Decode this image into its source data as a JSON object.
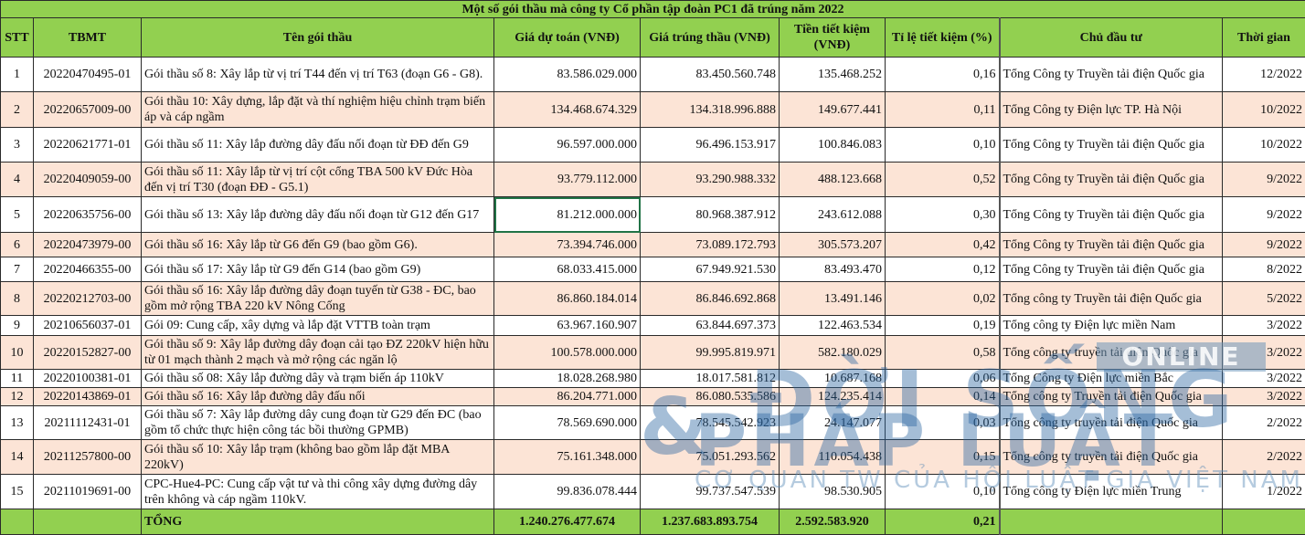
{
  "title": "Một số gói thầu mà công ty Cổ phần tập đoàn PC1 đã trúng năm 2022",
  "headers": {
    "stt": "STT",
    "tbmt": "TBMT",
    "ten_goi_thau": "Tên gói thầu",
    "gia_du_toan": "Giá dự toán (VNĐ)",
    "gia_trung_thau": "Giá trúng thầu (VNĐ)",
    "tien_tiet_kiem": "Tiền tiết kiệm (VNĐ)",
    "ti_le_tiet_kiem": "Tỉ lệ tiết kiệm (%)",
    "chu_dau_tu": "Chủ đầu tư",
    "thoi_gian": "Thời gian"
  },
  "rows": [
    {
      "stt": "1",
      "tbmt": "20220470495-01",
      "ten": "Gói thầu số 8: Xây lắp từ vị trí T44 đến vị trí T63 (đoạn G6 - G8).",
      "gia_du_toan": "83.586.029.000",
      "gia_trung_thau": "83.450.560.748",
      "tien_tiet_kiem": "135.468.252",
      "ti_le": "0,16",
      "chu_dau_tu": "Tổng Công ty Truyền tải điện Quốc gia",
      "thoi_gian": "12/2022"
    },
    {
      "stt": "2",
      "tbmt": "20220657009-00",
      "ten": "Gói thầu 10: Xây dựng, lắp đặt và thí nghiệm hiệu chỉnh trạm biến áp và cáp ngầm",
      "gia_du_toan": "134.468.674.329",
      "gia_trung_thau": "134.318.996.888",
      "tien_tiet_kiem": "149.677.441",
      "ti_le": "0,11",
      "chu_dau_tu": "Tổng Công ty Điện lực TP. Hà Nội",
      "thoi_gian": "10/2022"
    },
    {
      "stt": "3",
      "tbmt": "20220621771-01",
      "ten": "Gói thầu số 11: Xây lắp đường dây đấu nối đoạn từ ĐĐ đến G9",
      "gia_du_toan": "96.597.000.000",
      "gia_trung_thau": "96.496.153.917",
      "tien_tiet_kiem": "100.846.083",
      "ti_le": "0,10",
      "chu_dau_tu": "Tổng Công ty Truyền tải điện Quốc gia",
      "thoi_gian": "10/2022"
    },
    {
      "stt": "4",
      "tbmt": "20220409059-00",
      "ten": "Gói thầu số 11: Xây lắp từ vị trí cột cổng TBA 500 kV Đức Hòa đến vị trí T30 (đoạn ĐĐ - G5.1)",
      "gia_du_toan": "93.779.112.000",
      "gia_trung_thau": "93.290.988.332",
      "tien_tiet_kiem": "488.123.668",
      "ti_le": "0,52",
      "chu_dau_tu": "Tổng Công ty Truyền tải điện Quốc gia",
      "thoi_gian": "9/2022"
    },
    {
      "stt": "5",
      "tbmt": "20220635756-00",
      "ten": "Gói thầu số 13: Xây lắp đường dây đấu nối đoạn từ G12 đến G17",
      "gia_du_toan": "81.212.000.000",
      "gia_trung_thau": "80.968.387.912",
      "tien_tiet_kiem": "243.612.088",
      "ti_le": "0,30",
      "chu_dau_tu": "Tổng Công ty Truyền tải điện Quốc gia",
      "thoi_gian": "9/2022"
    },
    {
      "stt": "6",
      "tbmt": "20220473979-00",
      "ten": "Gói thầu số 16: Xây lắp từ G6 đến G9 (bao gồm G6).",
      "gia_du_toan": "73.394.746.000",
      "gia_trung_thau": "73.089.172.793",
      "tien_tiet_kiem": "305.573.207",
      "ti_le": "0,42",
      "chu_dau_tu": "Tổng Công ty Truyền tải điện Quốc gia",
      "thoi_gian": "9/2022"
    },
    {
      "stt": "7",
      "tbmt": "20220466355-00",
      "ten": "Gói thầu số 17: Xây lắp từ G9 đến G14 (bao gồm G9)",
      "gia_du_toan": "68.033.415.000",
      "gia_trung_thau": "67.949.921.530",
      "tien_tiet_kiem": "83.493.470",
      "ti_le": "0,12",
      "chu_dau_tu": "Tổng Công ty Truyền tải điện Quốc gia",
      "thoi_gian": "8/2022"
    },
    {
      "stt": "8",
      "tbmt": "20220212703-00",
      "ten": "Gói thầu số 16: Xây lắp đường dây đoạn tuyến từ G38 - ĐC, bao gồm mở rộng TBA 220 kV Nông Cống",
      "gia_du_toan": "86.860.184.014",
      "gia_trung_thau": "86.846.692.868",
      "tien_tiet_kiem": "13.491.146",
      "ti_le": "0,02",
      "chu_dau_tu": "Tổng công ty Truyền tải điện Quốc gia",
      "thoi_gian": "5/2022"
    },
    {
      "stt": "9",
      "tbmt": "20210656037-01",
      "ten": "Gói 09: Cung cấp, xây dựng và lắp đặt VTTB toàn trạm",
      "gia_du_toan": "63.967.160.907",
      "gia_trung_thau": "63.844.697.373",
      "tien_tiet_kiem": "122.463.534",
      "ti_le": "0,19",
      "chu_dau_tu": "Tổng công ty Điện lực miền Nam",
      "thoi_gian": "3/2022"
    },
    {
      "stt": "10",
      "tbmt": "20220152827-00",
      "ten": "Gói thầu số 9: Xây lắp đường dây đoạn cải tạo ĐZ 220kV hiện hữu từ 01 mạch thành 2 mạch và mở rộng các ngăn lộ",
      "gia_du_toan": "100.578.000.000",
      "gia_trung_thau": "99.995.819.971",
      "tien_tiet_kiem": "582.180.029",
      "ti_le": "0,58",
      "chu_dau_tu": "Tổng công ty truyền tải điện Quốc gia",
      "thoi_gian": "3/2022"
    },
    {
      "stt": "11",
      "tbmt": "20220100381-01",
      "ten": "Gói thầu số 08: Xây lắp đường dây và trạm biến áp 110kV",
      "gia_du_toan": "18.028.268.980",
      "gia_trung_thau": "18.017.581.812",
      "tien_tiet_kiem": "10.687.168",
      "ti_le": "0,06",
      "chu_dau_tu": "Tổng Công ty Điện lực miền Bắc",
      "thoi_gian": "3/2022"
    },
    {
      "stt": "12",
      "tbmt": "20220143869-01",
      "ten": "Gói thầu số 16: Xây lắp đường dây đấu nối",
      "gia_du_toan": "86.204.771.000",
      "gia_trung_thau": "86.080.535.586",
      "tien_tiet_kiem": "124.235.414",
      "ti_le": "0,14",
      "chu_dau_tu": "Tổng công ty Truyền tải điện Quốc gia",
      "thoi_gian": "3/2022"
    },
    {
      "stt": "13",
      "tbmt": "20211112431-01",
      "ten": "Gói thầu số 7: Xây lắp đường dây cung đoạn từ G29 đến ĐC (bao gồm tổ chức thực hiện công tác bồi thường GPMB)",
      "gia_du_toan": "78.569.690.000",
      "gia_trung_thau": "78.545.542.923",
      "tien_tiet_kiem": "24.147.077",
      "ti_le": "0,03",
      "chu_dau_tu": "Tổng công ty truyền tải điện Quốc gia",
      "thoi_gian": "2/2022"
    },
    {
      "stt": "14",
      "tbmt": "20211257800-00",
      "ten": "Gói thầu số 10: Xây lắp trạm (không bao gồm lắp đặt MBA 220kV)",
      "gia_du_toan": "75.161.348.000",
      "gia_trung_thau": "75.051.293.562",
      "tien_tiet_kiem": "110.054.438",
      "ti_le": "0,15",
      "chu_dau_tu": "Tổng công ty truyền tải điện Quốc gia",
      "thoi_gian": "2/2022"
    },
    {
      "stt": "15",
      "tbmt": "20211019691-00",
      "ten": "CPC-Hue4-PC: Cung cấp vật tư và thi công xây dựng đường dây trên không và cáp ngầm 110kV.",
      "gia_du_toan": "99.836.078.444",
      "gia_trung_thau": "99.737.547.539",
      "tien_tiet_kiem": "98.530.905",
      "ti_le": "0,10",
      "chu_dau_tu": "Tổng công ty Điện lực miền Trung",
      "thoi_gian": "1/2022"
    }
  ],
  "total": {
    "label": "TỔNG",
    "gia_du_toan": "1.240.276.477.674",
    "gia_trung_thau": "1.237.683.893.754",
    "tien_tiet_kiem": "2.592.583.920",
    "ti_le": "0,21"
  },
  "watermark": {
    "line1": "ĐỜI SỐNG",
    "amp": "&",
    "line2": "PHÁP LUẬT",
    "badge": "ONLINE",
    "tagline": "CƠ QUAN TW CỦA HỘI LUẬT GIA VIỆT NAM"
  },
  "colors": {
    "header_green": "#92d050",
    "row_peach": "#fce4d6",
    "row_white": "#ffffff",
    "selection_green": "#217346"
  }
}
